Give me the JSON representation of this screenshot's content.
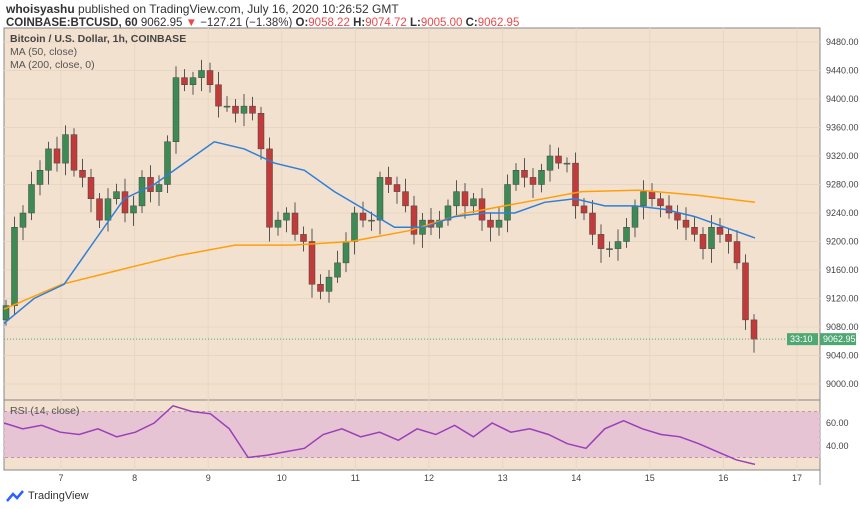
{
  "header": {
    "author": "whoisyashu",
    "published": "published on TradingView.com, July 16, 2020 10:26:52 GMT",
    "symbol": "COINBASE:BTCUSD, 60",
    "last": "9062.95",
    "change": "−127.21 (−1.38%)",
    "o_label": "O:",
    "o": "9058.22",
    "h_label": "H:",
    "h": "9074.72",
    "l_label": "L:",
    "l": "9005.00",
    "c_label": "C:",
    "c": "9062.95"
  },
  "legend": {
    "title": "Bitcoin / U.S. Dollar, 1h, COINBASE",
    "ma50": "MA (50, close)",
    "ma200": "MA (200, close, 0)",
    "rsi": "RSI (14, close)"
  },
  "price_badge": "9062.95",
  "countdown": "33:10",
  "brand": "TradingView",
  "colors": {
    "up": "#3d8a55",
    "down": "#c23b3b",
    "ma50": "#2f7fd6",
    "ma200": "#ff9f0a",
    "rsi": "#9b3fb8",
    "bg": "#f3e1cf",
    "badge": "#4fa874"
  },
  "chart_data": {
    "type": "candlestick",
    "price_ticks": [
      "9480.00",
      "9440.00",
      "9400.00",
      "9360.00",
      "9320.00",
      "9280.00",
      "9240.00",
      "9200.00",
      "9160.00",
      "9120.00",
      "9080.00",
      "9040.00",
      "9000.00"
    ],
    "ylim": [
      9000,
      9480
    ],
    "x_ticks": [
      "7",
      "8",
      "9",
      "10",
      "11",
      "12",
      "13",
      "14",
      "15",
      "16",
      "17"
    ],
    "closes": [
      9110,
      9220,
      9240,
      9280,
      9300,
      9330,
      9310,
      9350,
      9300,
      9290,
      9260,
      9230,
      9260,
      9270,
      9240,
      9250,
      9290,
      9270,
      9280,
      9340,
      9430,
      9420,
      9430,
      9440,
      9420,
      9390,
      9390,
      9380,
      9390,
      9380,
      9330,
      9220,
      9230,
      9240,
      9210,
      9200,
      9140,
      9130,
      9150,
      9170,
      9200,
      9240,
      9230,
      9230,
      9290,
      9280,
      9270,
      9250,
      9210,
      9230,
      9220,
      9230,
      9250,
      9270,
      9250,
      9260,
      9230,
      9220,
      9230,
      9280,
      9300,
      9290,
      9280,
      9300,
      9320,
      9310,
      9310,
      9250,
      9240,
      9210,
      9190,
      9190,
      9200,
      9220,
      9250,
      9270,
      9260,
      9250,
      9240,
      9230,
      9220,
      9210,
      9190,
      9220,
      9210,
      9200,
      9170,
      9090,
      9063
    ],
    "ma50": [
      9085,
      9120,
      9140,
      9200,
      9260,
      9280,
      9310,
      9340,
      9330,
      9310,
      9300,
      9270,
      9245,
      9220,
      9220,
      9235,
      9240,
      9240,
      9255,
      9260,
      9250,
      9250,
      9245,
      9235,
      9220,
      9205
    ],
    "ma200": [
      9105,
      9140,
      9160,
      9180,
      9195,
      9195,
      9200,
      9215,
      9240,
      9255,
      9270,
      9272,
      9265,
      9255
    ],
    "rsi_ticks": [
      "60.00",
      "40.00"
    ],
    "rsi": [
      60,
      55,
      58,
      52,
      50,
      55,
      48,
      52,
      60,
      75,
      70,
      68,
      55,
      30,
      32,
      35,
      38,
      50,
      55,
      48,
      52,
      45,
      55,
      50,
      58,
      48,
      60,
      52,
      55,
      50,
      42,
      38,
      55,
      62,
      55,
      50,
      48,
      42,
      35,
      28,
      24
    ]
  }
}
